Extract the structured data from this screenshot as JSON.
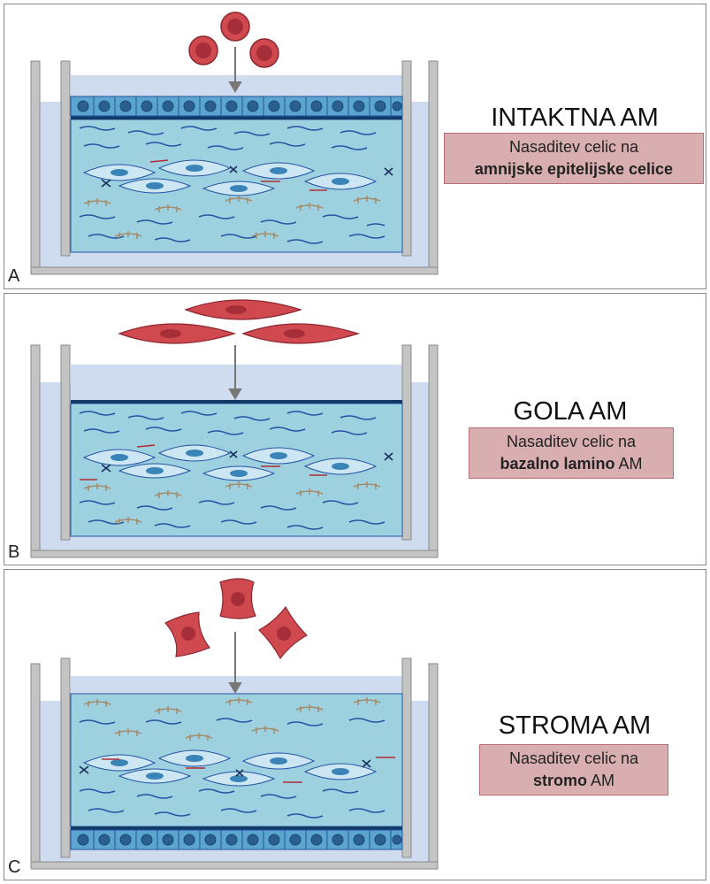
{
  "panels": [
    {
      "letter": "A",
      "title": "INTAKTNA AM",
      "box_line1": "Nasaditev celic na",
      "box_bold": "amnijske epitelijske celice",
      "box_rest": ""
    },
    {
      "letter": "B",
      "title": "GOLA AM",
      "box_line1": "Nasaditev celic na",
      "box_bold": "bazalno lamino",
      "box_rest": " AM"
    },
    {
      "letter": "C",
      "title": "STROMA AM",
      "box_line1": "Nasaditev celic na",
      "box_bold": "stromo",
      "box_rest": " AM"
    }
  ],
  "colors": {
    "medium": "#cfdcf0",
    "tissue": "#9ed1e0",
    "epithelium": "#3a84b8",
    "lamina": "#123a66",
    "fiber": "#2454a3",
    "collagen": "#a48a6a",
    "seeded_cell": "#d0494f",
    "well": "#c4c4c4"
  }
}
